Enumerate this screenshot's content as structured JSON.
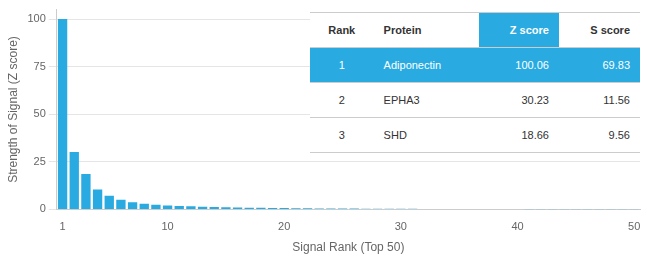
{
  "chart_data": {
    "type": "bar",
    "x": [
      1,
      2,
      3,
      4,
      5,
      6,
      7,
      8,
      9,
      10,
      11,
      12,
      13,
      14,
      15,
      16,
      17,
      18,
      19,
      20,
      21,
      22,
      23,
      24,
      25,
      26,
      27,
      28,
      29,
      30,
      31,
      32,
      33,
      34,
      35,
      36,
      37,
      38,
      39,
      40,
      41,
      42,
      43,
      44,
      45,
      46,
      47,
      48,
      49,
      50
    ],
    "values": [
      100.06,
      30.23,
      18.66,
      10.5,
      7.2,
      5.1,
      3.8,
      3.0,
      2.5,
      2.1,
      1.8,
      1.6,
      1.4,
      1.25,
      1.1,
      1.0,
      0.9,
      0.82,
      0.75,
      0.68,
      0.62,
      0.57,
      0.52,
      0.48,
      0.44,
      0.41,
      0.38,
      0.35,
      0.32,
      0.3,
      0.28,
      0.26,
      0.24,
      0.22,
      0.21,
      0.19,
      0.18,
      0.17,
      0.16,
      0.15,
      0.14,
      0.13,
      0.12,
      0.11,
      0.1,
      0.09,
      0.09,
      0.08,
      0.08,
      0.07
    ],
    "color": "#29ABE2",
    "xlabel": "Signal Rank (Top 50)",
    "ylabel": "Strength of Signal (Z score)",
    "xlim": [
      0.5,
      50.5
    ],
    "ylim": [
      0,
      105
    ],
    "xticks": [
      1,
      10,
      20,
      30,
      40,
      50
    ],
    "yticks": [
      0,
      25,
      50,
      75,
      100
    ],
    "grid": "y",
    "table": {
      "columns": [
        "Rank",
        "Protein",
        "Z score",
        "S score"
      ],
      "rows": [
        [
          "1",
          "Adiponectin",
          "100.06",
          "69.83"
        ],
        [
          "2",
          "EPHA3",
          "30.23",
          "11.56"
        ],
        [
          "3",
          "SHD",
          "18.66",
          "9.56"
        ]
      ],
      "color": "#29ABE2"
    }
  }
}
